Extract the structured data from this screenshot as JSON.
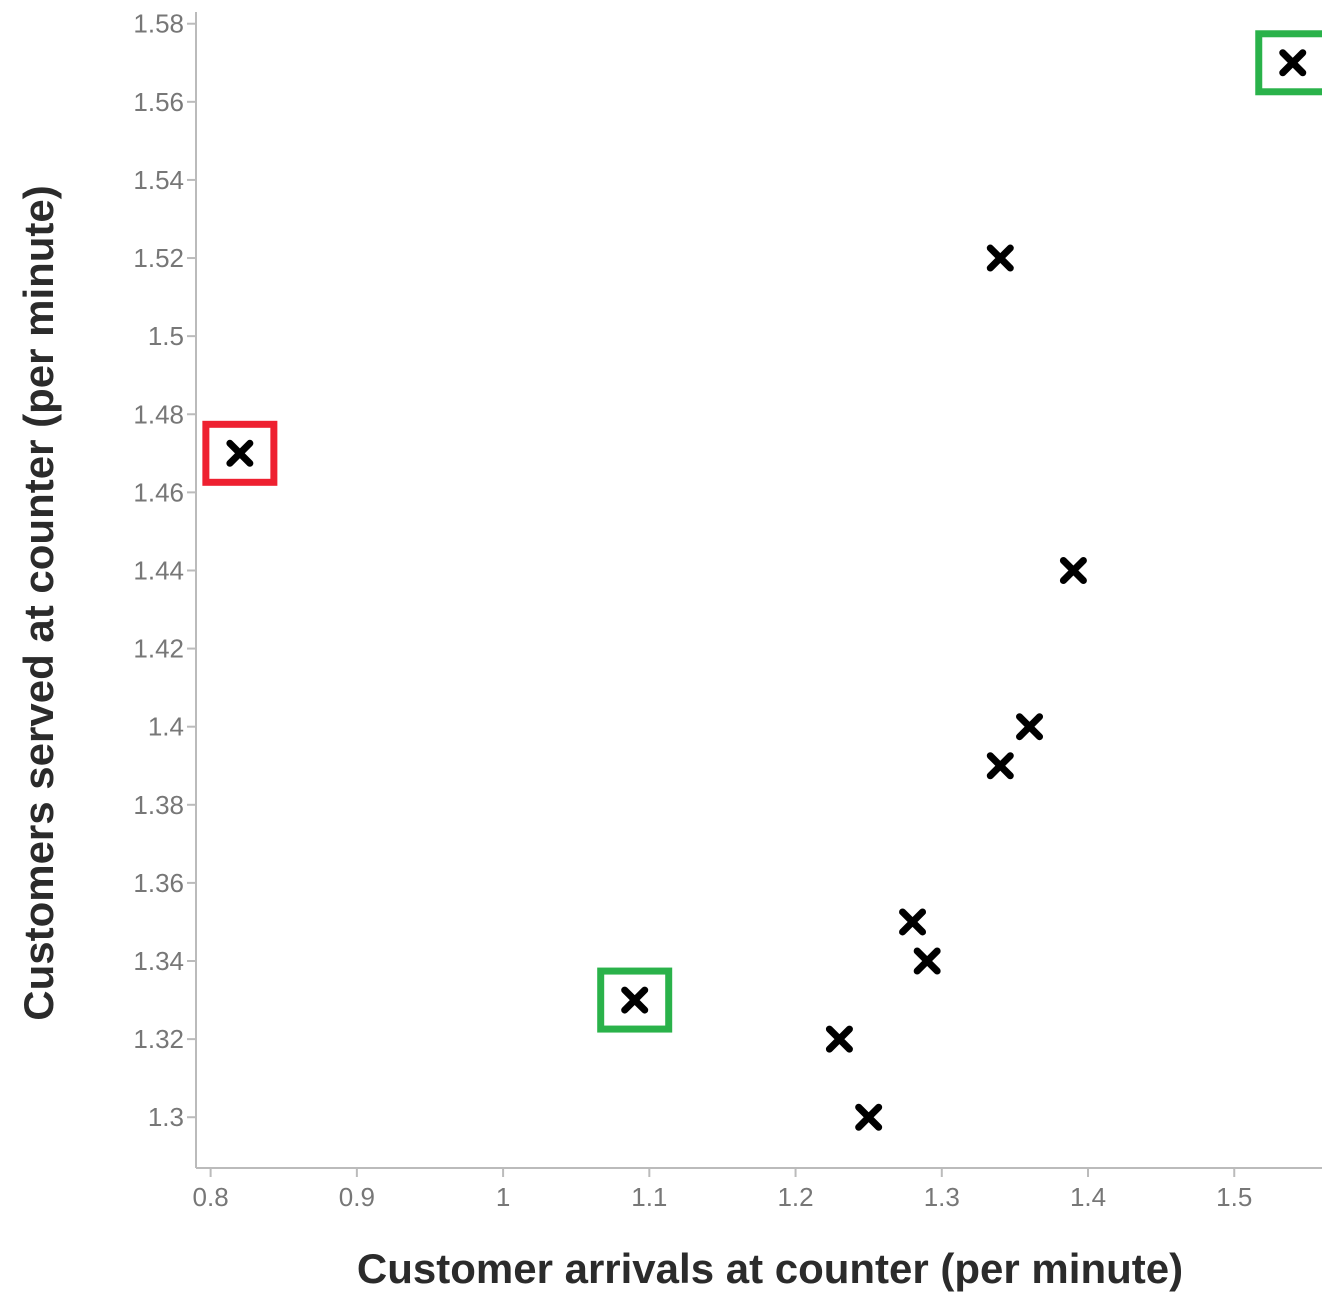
{
  "chart_data": {
    "type": "scatter",
    "title": "",
    "xlabel": "Customer arrivals at counter (per minute)",
    "ylabel": "Customers served at counter (per minute)",
    "xlim": [
      0.79,
      1.56
    ],
    "ylim": [
      1.287,
      1.583
    ],
    "x_ticks": [
      0.8,
      0.9,
      1,
      1.1,
      1.2,
      1.3,
      1.4,
      1.5
    ],
    "x_tick_labels": [
      "0.8",
      "0.9",
      "1",
      "1.1",
      "1.2",
      "1.3",
      "1.4",
      "1.5"
    ],
    "y_ticks": [
      1.3,
      1.32,
      1.34,
      1.36,
      1.38,
      1.4,
      1.42,
      1.44,
      1.46,
      1.48,
      1.5,
      1.52,
      1.54,
      1.56,
      1.58
    ],
    "y_tick_labels": [
      "1.3",
      "1.32",
      "1.34",
      "1.36",
      "1.38",
      "1.4",
      "1.42",
      "1.44",
      "1.46",
      "1.48",
      "1.5",
      "1.52",
      "1.54",
      "1.56",
      "1.58"
    ],
    "grid": false,
    "marker": "cross",
    "colors": {
      "marker": "#000000",
      "axis": "#bbbbbb",
      "tick_text": "#777777",
      "title_text": "#2b2b2b",
      "highlight_good": "#2ab24a",
      "highlight_bad": "#ee2030"
    },
    "points": [
      {
        "x": 1.54,
        "y": 1.57,
        "highlight": "good"
      },
      {
        "x": 1.34,
        "y": 1.52
      },
      {
        "x": 0.82,
        "y": 1.47,
        "highlight": "bad"
      },
      {
        "x": 1.39,
        "y": 1.44
      },
      {
        "x": 1.36,
        "y": 1.4
      },
      {
        "x": 1.34,
        "y": 1.39
      },
      {
        "x": 1.28,
        "y": 1.35
      },
      {
        "x": 1.29,
        "y": 1.34
      },
      {
        "x": 1.09,
        "y": 1.33,
        "highlight": "good"
      },
      {
        "x": 1.23,
        "y": 1.32
      },
      {
        "x": 1.25,
        "y": 1.3
      }
    ]
  }
}
